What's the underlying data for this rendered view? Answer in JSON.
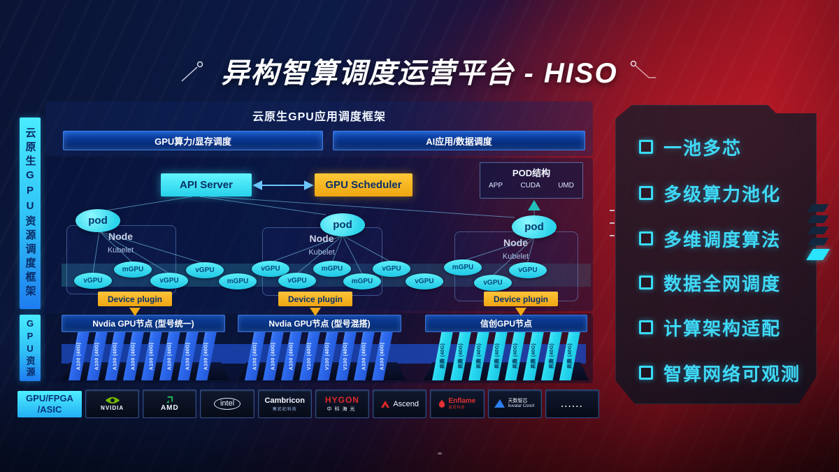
{
  "title": {
    "text": "异构智算调度运营平台 - HISO"
  },
  "left_rails": {
    "top": "云原生GPU资源调度框架",
    "bottom": "GPU资源"
  },
  "framework": {
    "header": "云原生GPU应用调度框架",
    "sub_bars": [
      "GPU算力/显存调度",
      "AI应用/数据调度"
    ]
  },
  "scheduler": {
    "api_server": "API Server",
    "gpu_scheduler": "GPU Scheduler",
    "pod_box": {
      "title": "POD结构",
      "items": [
        "APP",
        "CUDA",
        "UMD"
      ]
    }
  },
  "cluster": {
    "nodes": [
      {
        "pod": "pod",
        "name": "Node",
        "agent": "Kubelet",
        "plugin": "Device plugin"
      },
      {
        "pod": "pod",
        "name": "Node",
        "agent": "Kubelet",
        "plugin": "Device plugin"
      },
      {
        "pod": "pod",
        "name": "Node",
        "agent": "Kubelet",
        "plugin": "Device plugin"
      }
    ],
    "gpu_ellipses": [
      "vGPU",
      "mGPU",
      "vGPU",
      "vGPU",
      "mGPU",
      "vGPU",
      "vGPU",
      "mGPU",
      "mGPU",
      "vGPU",
      "vGPU",
      "mGPU",
      "vGPU",
      "vGPU"
    ]
  },
  "gpu_groups": [
    {
      "label": "Nvdia GPU节点 (型号统一)",
      "cards": [
        "A100 (40G)",
        "A100 (40G)",
        "A100 (40G)",
        "A100 (40G)",
        "A100 (40G)",
        "A100 (40G)",
        "A100 (40G)",
        "A100 (40G)"
      ]
    },
    {
      "label": "Nvdia GPU节点 (型号混搭)",
      "cards": [
        "A100 (40G)",
        "A100 (40G)",
        "A100 (40G)",
        "V100 (40G)",
        "V100 (40G)",
        "V100 (40G)",
        "A100 (40G)",
        "A100 (40G)"
      ]
    },
    {
      "label": "信创GPU节点",
      "cards": [
        "昇腾 (40G)",
        "昇腾 (40G)",
        "昇腾 (40G)",
        "昇腾 (40G)",
        "昇腾 (40G)",
        "昇腾 (40G)",
        "昇腾 (40G)",
        "昇腾 (40G)"
      ]
    }
  ],
  "vendors": {
    "label_line1": "GPU/FPGA",
    "label_line2": "/ASIC",
    "items": [
      {
        "id": "nvidia",
        "text": "NVIDIA"
      },
      {
        "id": "amd",
        "text": "AMD"
      },
      {
        "id": "intel",
        "text": "intel"
      },
      {
        "id": "cambricon",
        "text": "Cambricon",
        "sub": "寒武纪科技"
      },
      {
        "id": "hygon",
        "text": "HYGON",
        "sub": "中科海光"
      },
      {
        "id": "ascend",
        "text": "Ascend"
      },
      {
        "id": "enflame",
        "text": "Enflame",
        "sub": "燧原科技"
      },
      {
        "id": "iluvatar",
        "text": "天数智芯",
        "sub": "Iluvatar CoreX"
      },
      {
        "id": "more",
        "text": "......"
      }
    ]
  },
  "features": {
    "items": [
      "一池多芯",
      "多级算力池化",
      "多维调度算法",
      "数据全网调度",
      "计算架构适配",
      "智算网络可观测"
    ]
  },
  "colors": {
    "accent_cyan": "#38dcf6",
    "accent_yellow": "#f5b41c",
    "card_blue": "#2e6cf0",
    "card_cyan": "#27d9f0",
    "nvidia_green": "#76b900",
    "brand_red": "#d42a2f"
  }
}
